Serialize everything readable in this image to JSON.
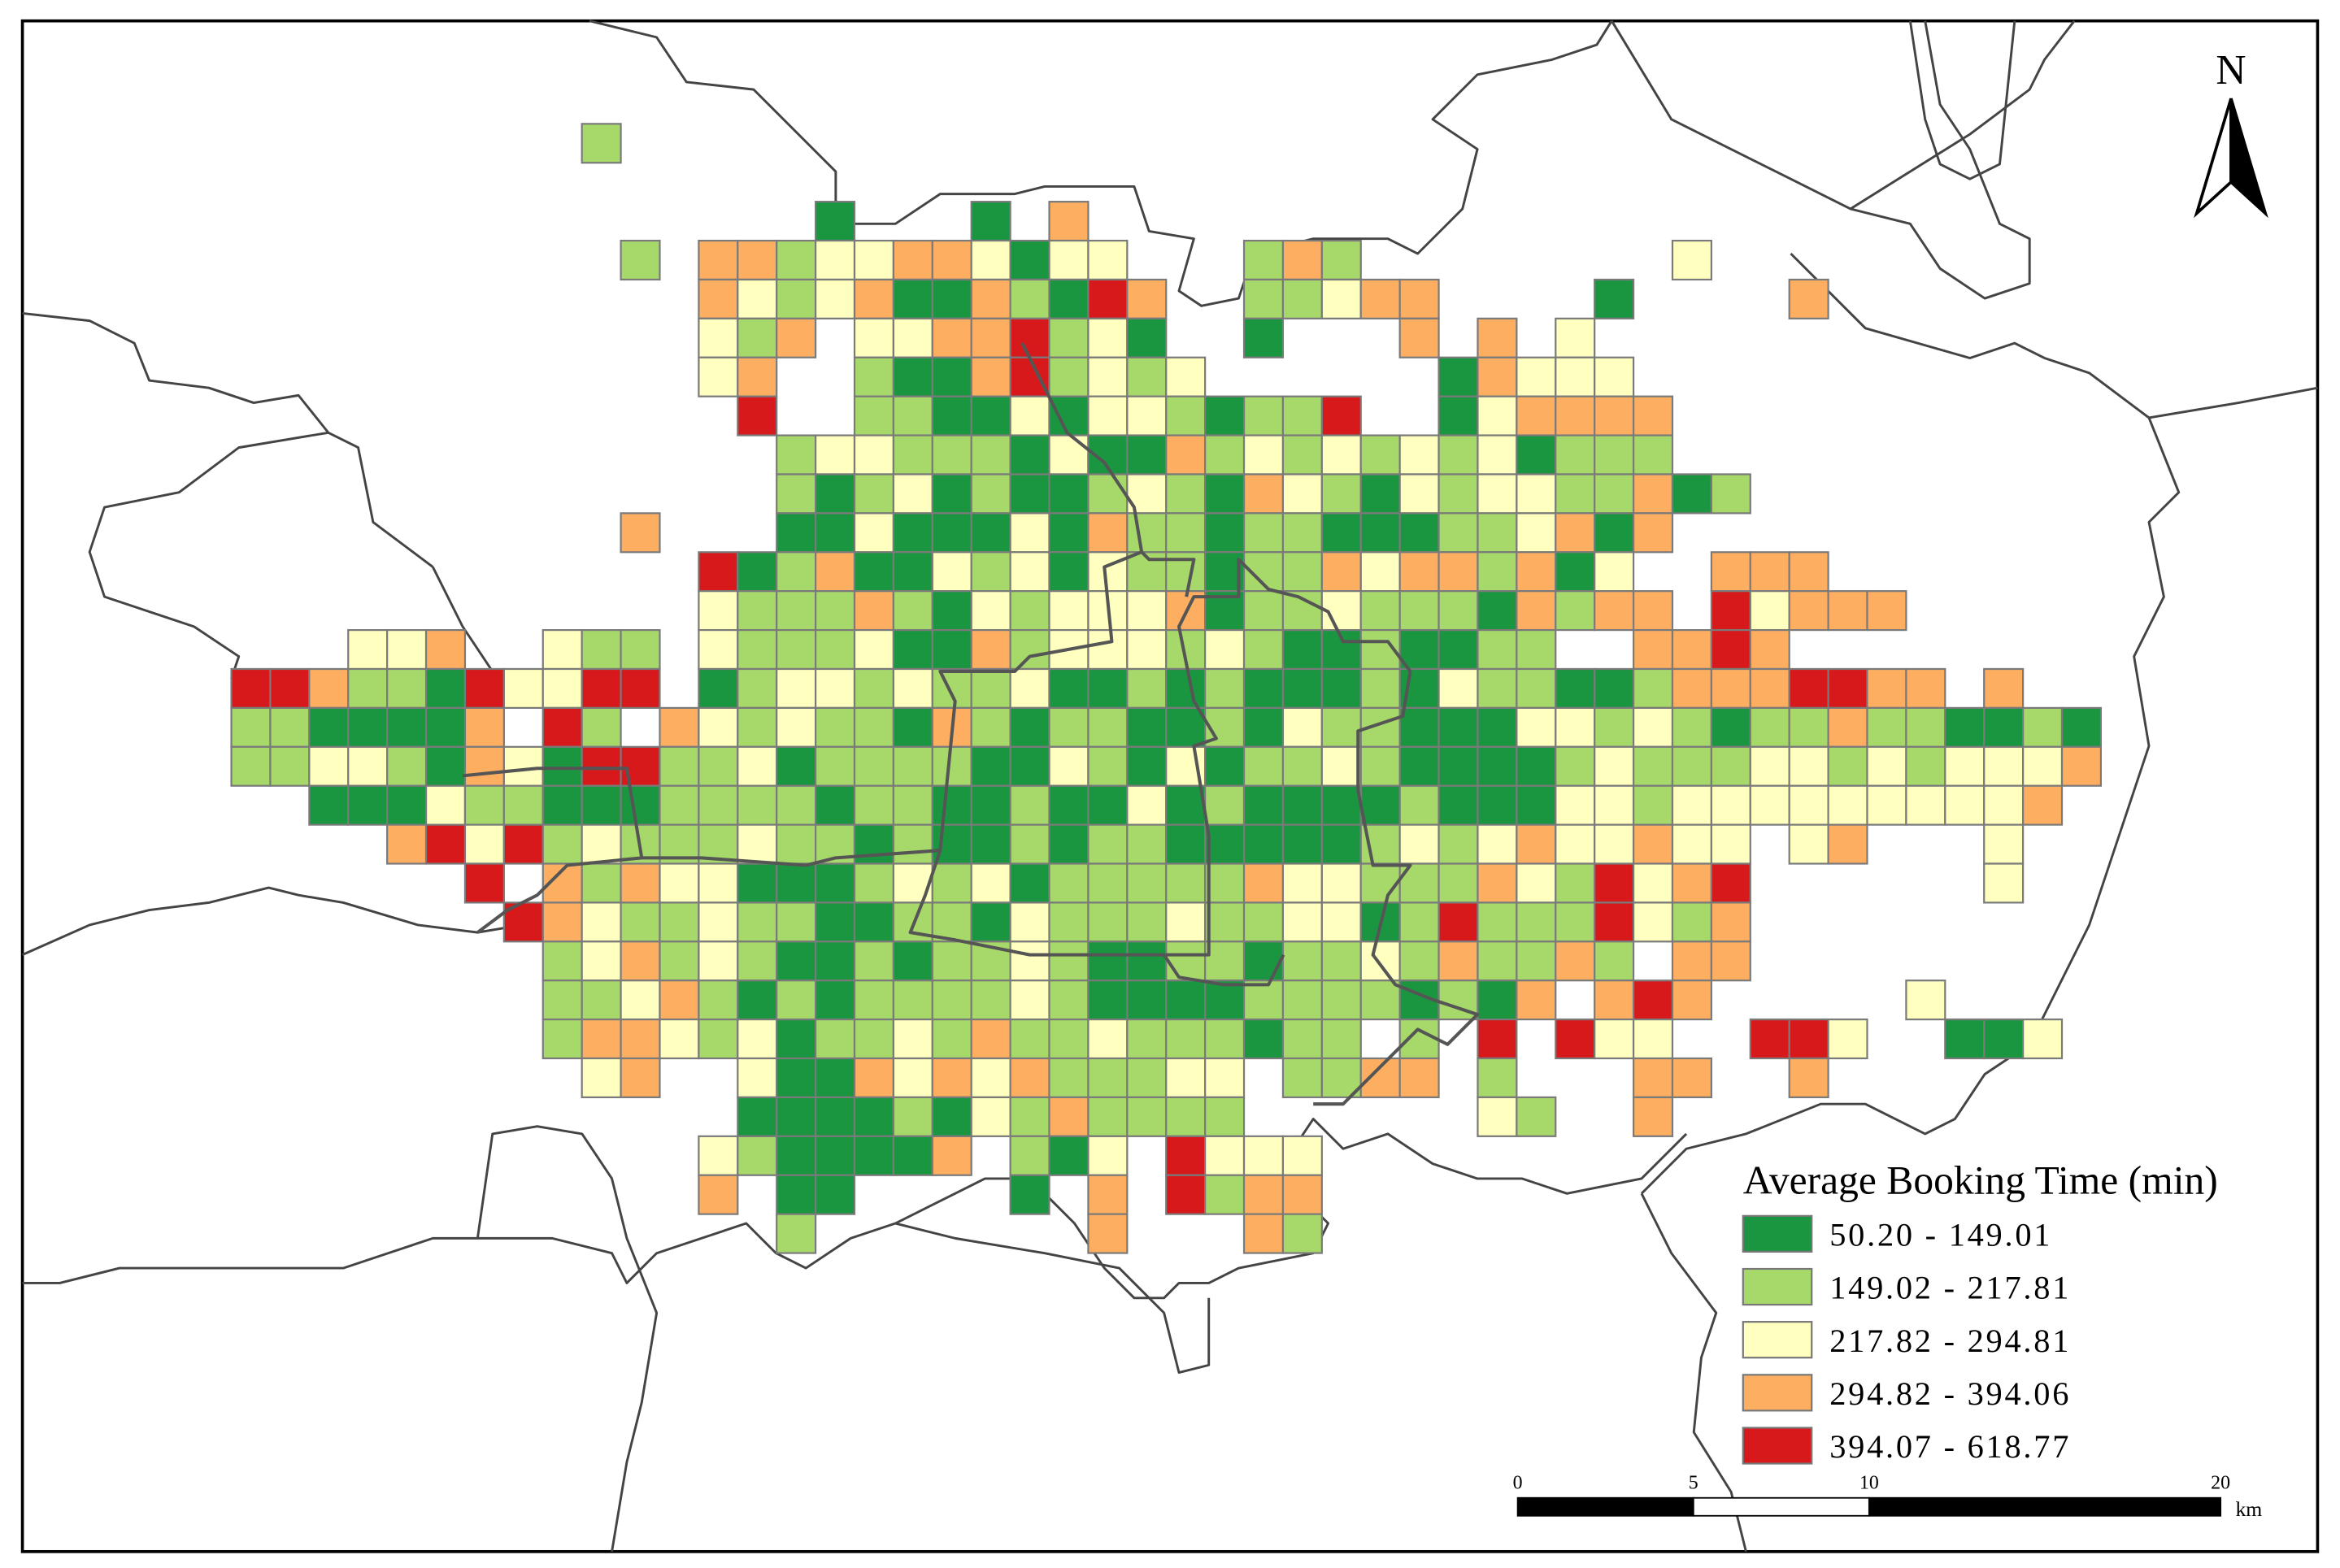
{
  "north": "N",
  "legend": {
    "title": "Average Booking Time (min)",
    "classes": [
      {
        "label": "50.20 - 149.01",
        "color": "#1a9641"
      },
      {
        "label": "149.02 - 217.81",
        "color": "#a6d96a"
      },
      {
        "label": "217.82 - 294.81",
        "color": "#ffffbf"
      },
      {
        "label": "294.82 - 394.06",
        "color": "#fdae61"
      },
      {
        "label": "394.07 - 618.77",
        "color": "#d7191c"
      }
    ]
  },
  "scale_bar": {
    "ticks": [
      0,
      5,
      10,
      20
    ],
    "unit": "km"
  }
}
